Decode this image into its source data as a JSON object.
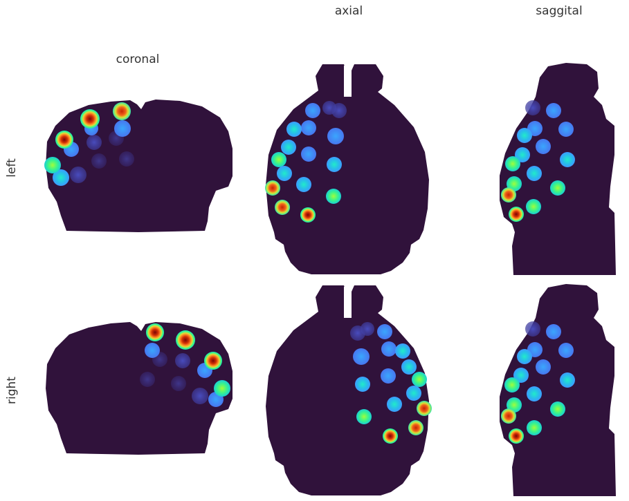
{
  "column_titles": {
    "coronal": "coronal",
    "axial": "axial",
    "saggital": "saggital"
  },
  "row_titles": {
    "left": "left",
    "right": "right"
  },
  "colors": {
    "brain_mask": "#30123b",
    "colormap": "turbo"
  }
}
